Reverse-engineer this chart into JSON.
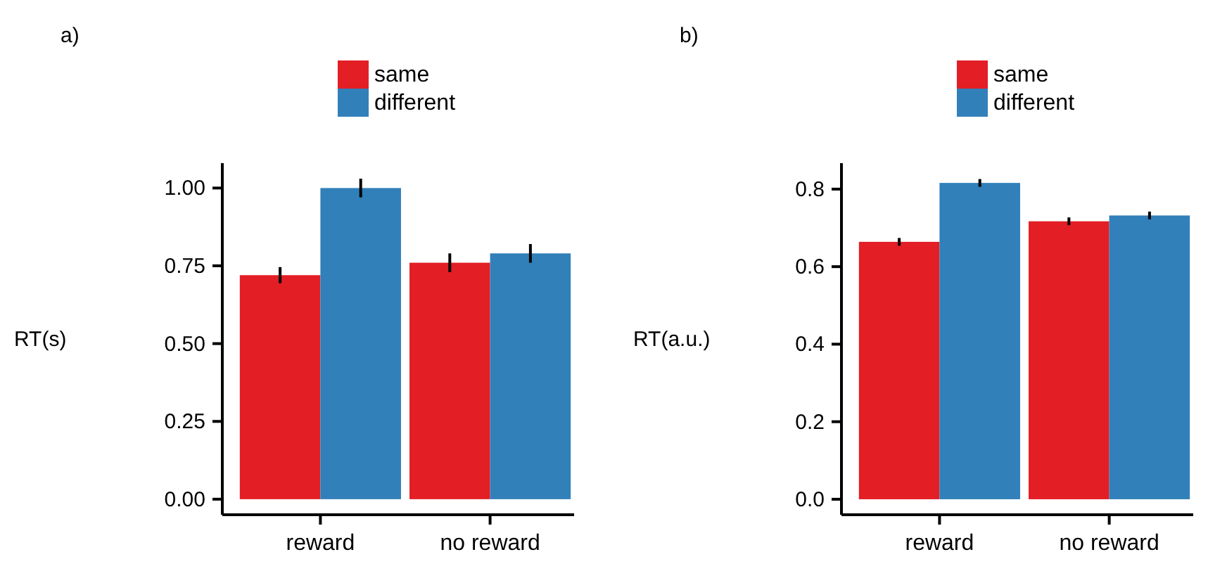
{
  "chart_data": [
    {
      "type": "bar",
      "title": "a)",
      "ylabel": "RT(s)",
      "categories": [
        "reward",
        "no reward"
      ],
      "series": [
        {
          "name": "same",
          "color": "#e31e25",
          "values": [
            0.72,
            0.76
          ],
          "errors": [
            0.026,
            0.03
          ]
        },
        {
          "name": "different",
          "color": "#3180b9",
          "values": [
            1.0,
            0.79
          ],
          "errors": [
            0.03,
            0.03
          ]
        }
      ],
      "ylim": [
        -0.05,
        1.08
      ],
      "yticks": [
        {
          "value": 0,
          "label": "0.00"
        },
        {
          "value": 0.25,
          "label": "0.25"
        },
        {
          "value": 0.5,
          "label": "0.50"
        },
        {
          "value": 0.75,
          "label": "0.75"
        },
        {
          "value": 1,
          "label": "1.00"
        }
      ],
      "grid": false,
      "legend": "top"
    },
    {
      "type": "bar",
      "title": "b)",
      "ylabel": "RT(a.u.)",
      "categories": [
        "reward",
        "no reward"
      ],
      "series": [
        {
          "name": "same",
          "color": "#e31e25",
          "values": [
            0.664,
            0.717
          ],
          "errors": [
            0.01,
            0.01
          ]
        },
        {
          "name": "different",
          "color": "#3180b9",
          "values": [
            0.816,
            0.732
          ],
          "errors": [
            0.01,
            0.01
          ]
        }
      ],
      "ylim": [
        -0.04,
        0.867
      ],
      "yticks": [
        {
          "value": 0,
          "label": "0.0"
        },
        0.2,
        0.4,
        0.6,
        0.8
      ],
      "grid": false,
      "legend": "top"
    }
  ]
}
